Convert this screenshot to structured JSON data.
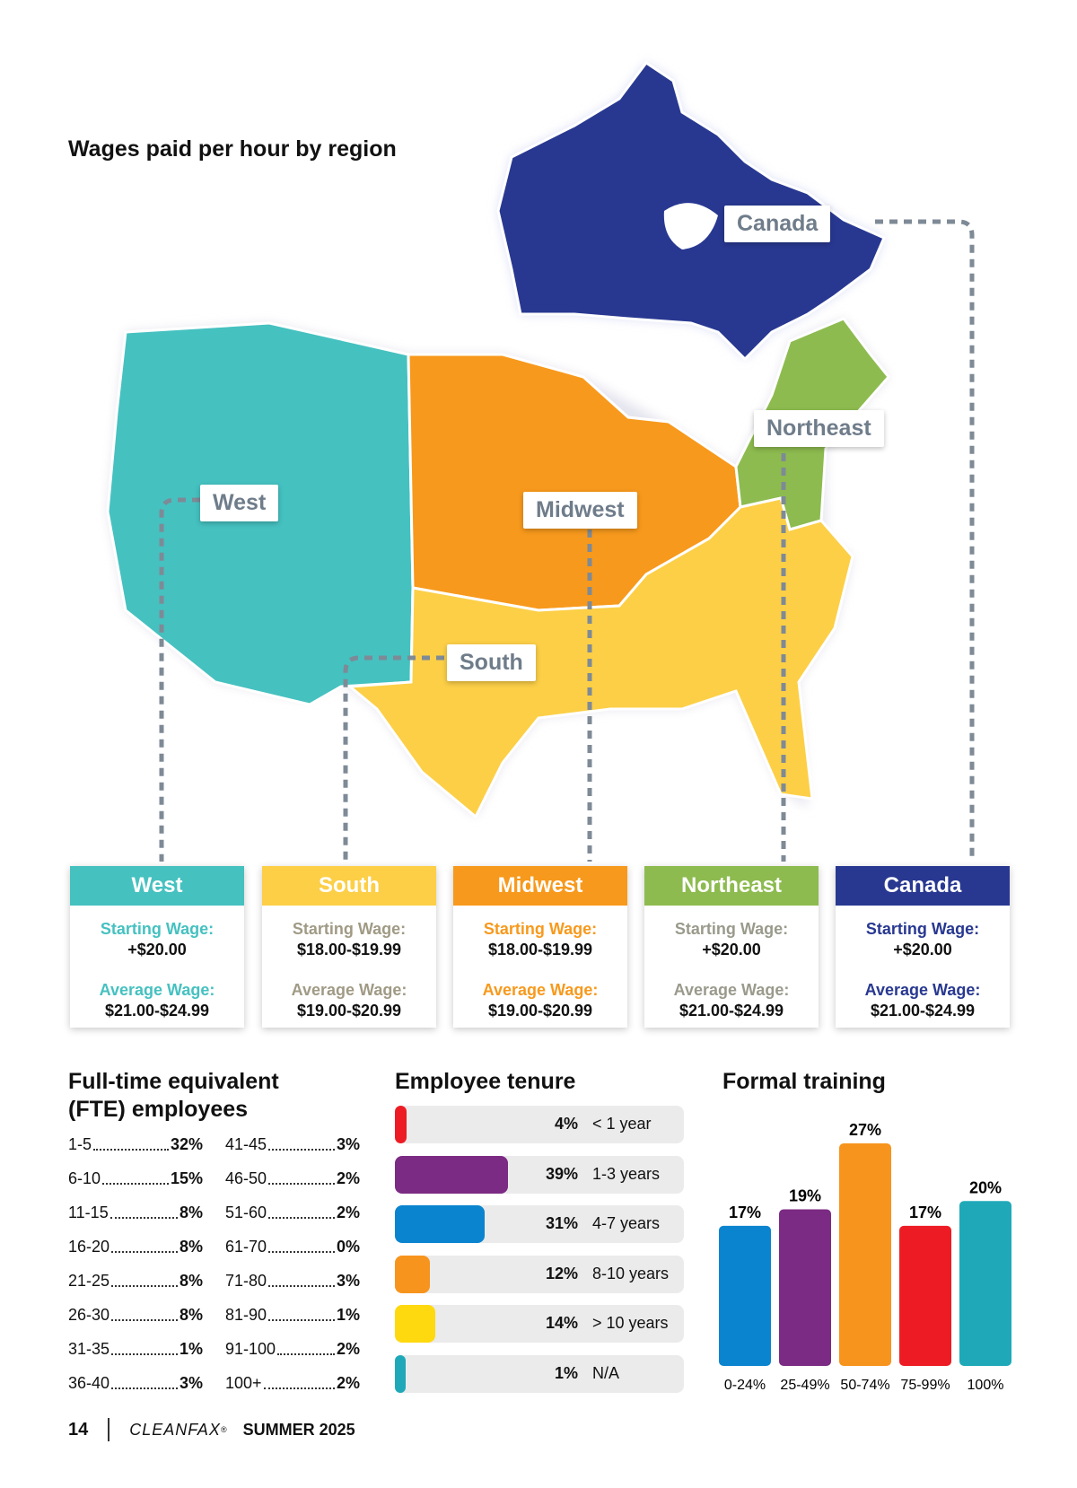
{
  "map_section": {
    "title": "Wages paid per hour by region",
    "map_labels": {
      "canada": "Canada",
      "northeast": "Northeast",
      "west": "West",
      "midwest": "Midwest",
      "south": "South"
    },
    "region_colors": {
      "west": "#45c1c0",
      "south": "#fccf47",
      "midwest": "#f7991c",
      "northeast": "#8dbb4f",
      "canada": "#283891"
    },
    "regions": [
      {
        "key": "west",
        "name": "West",
        "color": "#45c1c0",
        "label_color": "#45c1c0",
        "starting_label": "Starting Wage:",
        "starting_value": "+$20.00",
        "average_label": "Average Wage:",
        "average_value": "$21.00-$24.99"
      },
      {
        "key": "south",
        "name": "South",
        "color": "#fccf47",
        "label_color": "#a09a85",
        "starting_label": "Starting Wage:",
        "starting_value": "$18.00-$19.99",
        "average_label": "Average Wage:",
        "average_value": "$19.00-$20.99"
      },
      {
        "key": "midwest",
        "name": "Midwest",
        "color": "#f7991c",
        "label_color": "#f7991c",
        "starting_label": "Starting Wage:",
        "starting_value": "$18.00-$19.99",
        "average_label": "Average Wage:",
        "average_value": "$19.00-$20.99"
      },
      {
        "key": "northeast",
        "name": "Northeast",
        "color": "#8dbb4f",
        "label_color": "#9a9a8c",
        "starting_label": "Starting Wage:",
        "starting_value": "+$20.00",
        "average_label": "Average Wage:",
        "average_value": "$21.00-$24.99"
      },
      {
        "key": "canada",
        "name": "Canada",
        "color": "#283891",
        "label_color": "#283891",
        "starting_label": "Starting Wage:",
        "starting_value": "+$20.00",
        "average_label": "Average Wage:",
        "average_value": "$21.00-$24.99"
      }
    ]
  },
  "fte": {
    "title_line1": "Full-time equivalent",
    "title_line2": "(FTE) employees",
    "col1": [
      {
        "label": "1-5",
        "value": "32%"
      },
      {
        "label": "6-10",
        "value": "15%"
      },
      {
        "label": "11-15",
        "value": "8%"
      },
      {
        "label": "16-20",
        "value": "8%"
      },
      {
        "label": "21-25",
        "value": "8%"
      },
      {
        "label": "26-30",
        "value": "8%"
      },
      {
        "label": "31-35",
        "value": "1%"
      },
      {
        "label": "36-40",
        "value": "3%"
      }
    ],
    "col2": [
      {
        "label": "41-45",
        "value": "3%"
      },
      {
        "label": "46-50",
        "value": "2%"
      },
      {
        "label": "51-60",
        "value": "2%"
      },
      {
        "label": "61-70",
        "value": "0%"
      },
      {
        "label": "71-80",
        "value": "3%"
      },
      {
        "label": "81-90",
        "value": "1%"
      },
      {
        "label": "91-100",
        "value": "2%"
      },
      {
        "label": "100+",
        "value": "2%"
      }
    ]
  },
  "chart_data": [
    {
      "type": "bar",
      "orientation": "horizontal",
      "title": "Employee tenure",
      "categories": [
        "< 1 year",
        "1-3 years",
        "4-7 years",
        "8-10 years",
        "> 10 years",
        "N/A"
      ],
      "values": [
        4,
        39,
        31,
        12,
        14,
        1
      ],
      "value_labels": [
        "4%",
        "39%",
        "31%",
        "12%",
        "14%",
        "1%"
      ],
      "colors": [
        "#ed1c24",
        "#7b2b83",
        "#0a84cf",
        "#f7941d",
        "#ffd90f",
        "#1fa9b8"
      ],
      "xlim": [
        0,
        100
      ]
    },
    {
      "type": "bar",
      "title": "Formal training",
      "categories": [
        "0-24%",
        "25-49%",
        "50-74%",
        "75-99%",
        "100%"
      ],
      "values": [
        17,
        19,
        27,
        17,
        20
      ],
      "value_labels": [
        "17%",
        "19%",
        "27%",
        "17%",
        "20%"
      ],
      "colors": [
        "#0a84cf",
        "#7b2b83",
        "#f7941d",
        "#ed1c24",
        "#1fa9b8"
      ],
      "ylim": [
        0,
        27
      ]
    }
  ],
  "footer": {
    "page_number": "14",
    "magazine": "CLEANFAX",
    "trademark": "®",
    "issue": "SUMMER 2025"
  }
}
